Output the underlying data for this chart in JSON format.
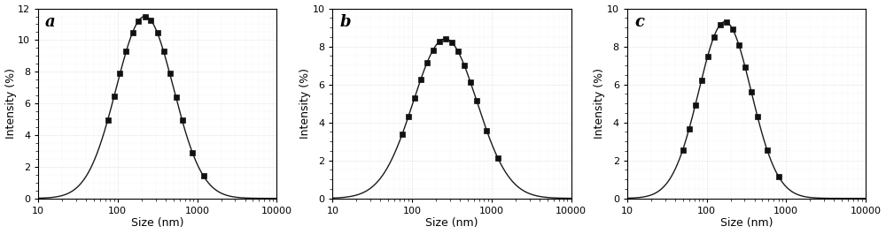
{
  "panels": [
    {
      "label": "a",
      "ylim": [
        0,
        12
      ],
      "yticks": [
        0,
        2,
        4,
        6,
        8,
        10,
        12
      ],
      "peak_x": 220,
      "peak_y": 11.5,
      "sigma": 0.36,
      "marker_x": [
        75,
        90,
        107,
        128,
        154,
        183,
        220,
        263,
        315,
        378,
        452,
        541,
        648,
        870,
        1200
      ],
      "xlim_log": [
        10,
        10000
      ]
    },
    {
      "label": "b",
      "ylim": [
        0,
        10
      ],
      "yticks": [
        0,
        2,
        4,
        6,
        8,
        10
      ],
      "peak_x": 260,
      "peak_y": 8.4,
      "sigma": 0.4,
      "marker_x": [
        75,
        90,
        107,
        128,
        154,
        183,
        220,
        263,
        315,
        378,
        452,
        541,
        648,
        870,
        1200
      ],
      "xlim_log": [
        10,
        10000
      ]
    },
    {
      "label": "c",
      "ylim": [
        0,
        10
      ],
      "yticks": [
        0,
        2,
        4,
        6,
        8,
        10
      ],
      "peak_x": 170,
      "peak_y": 9.3,
      "sigma": 0.33,
      "marker_x": [
        50,
        60,
        72,
        86,
        103,
        123,
        148,
        177,
        212,
        254,
        305,
        365,
        437,
        580,
        800
      ],
      "xlim_log": [
        10,
        10000
      ]
    }
  ],
  "xlabel": "Size (nm)",
  "ylabel": "Intensity (%)",
  "xticks": [
    10,
    100,
    1000,
    10000
  ],
  "xticklabels": [
    "10",
    "100",
    "1000",
    "10000"
  ],
  "marker": "s",
  "markersize": 4,
  "linecolor": "#1a1a1a",
  "markercolor": "#111111",
  "bg_color": "#ffffff",
  "label_fontsize": 13,
  "tick_fontsize": 8,
  "axis_label_fontsize": 9
}
